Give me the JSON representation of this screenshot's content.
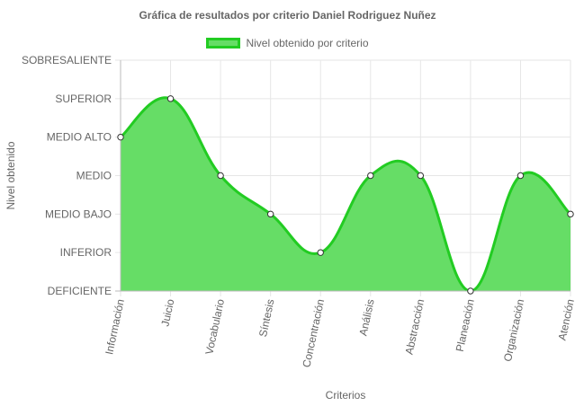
{
  "chart_data": {
    "type": "area",
    "title": "Gráfica de resultados por criterio Daniel Rodriguez Nuñez",
    "xlabel": "Criterios",
    "ylabel": "Nivel obtenido",
    "categories": [
      "Información",
      "Juicio",
      "Vocabulario",
      "Síntesis",
      "Concentración",
      "Análisis",
      "Abstracción",
      "Planeación",
      "Organización",
      "Atención"
    ],
    "y_levels": [
      "DEFICIENTE",
      "INFERIOR",
      "MEDIO BAJO",
      "MEDIO",
      "MEDIO ALTO",
      "SUPERIOR",
      "SOBRESALIENTE"
    ],
    "ylim": [
      0,
      6
    ],
    "series": [
      {
        "name": "Nivel obtenido por criterio",
        "values": [
          4,
          5,
          3,
          2,
          1,
          3,
          3,
          0,
          3,
          2
        ]
      }
    ],
    "grid": true,
    "legend_position": "top",
    "colors": {
      "fill": "#66dd66",
      "line": "#22cc22",
      "point_fill": "#ffffff",
      "point_stroke": "#333333",
      "grid": "#e6e6e6",
      "axis": "#bbbbbb",
      "text": "#666666"
    }
  }
}
